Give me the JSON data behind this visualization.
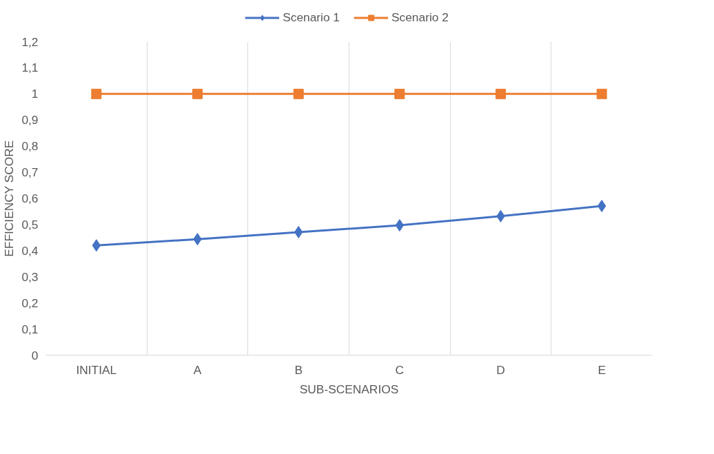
{
  "chart_data": {
    "type": "line",
    "xlabel": "SUB-SCENARIOS",
    "ylabel": "EFFICIENCY SCORE",
    "categories": [
      "INITIAL",
      "A",
      "B",
      "C",
      "D",
      "E"
    ],
    "series": [
      {
        "name": "Scenario 1",
        "color": "#4472c4",
        "marker": "diamond",
        "values": [
          0.42,
          0.444,
          0.471,
          0.497,
          0.532,
          0.571
        ]
      },
      {
        "name": "Scenario 2",
        "color": "#ed7d31",
        "marker": "square",
        "values": [
          1.0,
          1.0,
          1.0,
          1.0,
          1.0,
          1.0
        ]
      }
    ],
    "ylim": [
      0,
      1.2
    ],
    "yticks": [
      0,
      {
        "value": 0.1,
        "label": "0,1"
      },
      {
        "value": 0.2,
        "label": "0,2"
      },
      {
        "value": 0.3,
        "label": "0,3"
      },
      {
        "value": 0.4,
        "label": "0,4"
      },
      {
        "value": 0.5,
        "label": "0,5"
      },
      {
        "value": 0.6,
        "label": "0,6"
      },
      {
        "value": 0.7,
        "label": "0,7"
      },
      {
        "value": 0.8,
        "label": "0,8"
      },
      {
        "value": 0.9,
        "label": "0,9"
      },
      1,
      {
        "value": 1.1,
        "label": "1,1"
      },
      {
        "value": 1.2,
        "label": "1,2"
      }
    ],
    "grid": "x",
    "legend": "top",
    "line_style": "solid"
  }
}
